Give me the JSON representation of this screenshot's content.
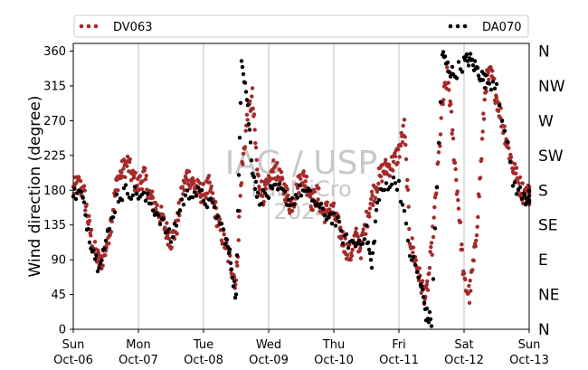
{
  "chart_data": {
    "type": "scatter",
    "ylabel": "Wind direction (degree)",
    "ylim": [
      0,
      370
    ],
    "yticks": [
      0,
      45,
      90,
      135,
      180,
      225,
      270,
      315,
      360
    ],
    "xlim": [
      "2024-10-06 00:00",
      "2024-10-13 00:00"
    ],
    "xticks": [
      {
        "value": "2024-10-06",
        "day": "Sun",
        "date": "Oct-06"
      },
      {
        "value": "2024-10-07",
        "day": "Mon",
        "date": "Oct-07"
      },
      {
        "value": "2024-10-08",
        "day": "Tue",
        "date": "Oct-08"
      },
      {
        "value": "2024-10-09",
        "day": "Wed",
        "date": "Oct-09"
      },
      {
        "value": "2024-10-10",
        "day": "Thu",
        "date": "Oct-10"
      },
      {
        "value": "2024-10-11",
        "day": "Fri",
        "date": "Oct-11"
      },
      {
        "value": "2024-10-12",
        "day": "Sat",
        "date": "Oct-12"
      },
      {
        "value": "2024-10-13",
        "day": "Sun",
        "date": "Oct-13"
      }
    ],
    "secondary_y_labels": [
      {
        "value": 0,
        "label": "N"
      },
      {
        "value": 45,
        "label": "NE"
      },
      {
        "value": 90,
        "label": "E"
      },
      {
        "value": 135,
        "label": "SE"
      },
      {
        "value": 180,
        "label": "S"
      },
      {
        "value": 225,
        "label": "SW"
      },
      {
        "value": 270,
        "label": "W"
      },
      {
        "value": 315,
        "label": "NW"
      },
      {
        "value": 360,
        "label": "N"
      }
    ],
    "grid": "vertical lines at day ticks",
    "legend_placement": "top, above plot",
    "watermark": [
      "IAG / USP",
      "LabMiCro",
      "2024"
    ],
    "series": [
      {
        "name": "DV063",
        "color": "#a52a2a",
        "points": [
          [
            "2024-10-06 00:00",
            180
          ],
          [
            "2024-10-06 02:00",
            188
          ],
          [
            "2024-10-06 04:00",
            175
          ],
          [
            "2024-10-06 06:00",
            130
          ],
          [
            "2024-10-06 08:00",
            100
          ],
          [
            "2024-10-06 10:00",
            85
          ],
          [
            "2024-10-06 12:00",
            105
          ],
          [
            "2024-10-06 14:00",
            140
          ],
          [
            "2024-10-06 16:00",
            190
          ],
          [
            "2024-10-06 18:00",
            205
          ],
          [
            "2024-10-06 20:00",
            215
          ],
          [
            "2024-10-06 22:00",
            195
          ],
          [
            "2024-10-07 00:00",
            185
          ],
          [
            "2024-10-07 02:00",
            200
          ],
          [
            "2024-10-07 04:00",
            175
          ],
          [
            "2024-10-07 06:00",
            160
          ],
          [
            "2024-10-07 08:00",
            150
          ],
          [
            "2024-10-07 10:00",
            130
          ],
          [
            "2024-10-07 12:00",
            115
          ],
          [
            "2024-10-07 14:00",
            130
          ],
          [
            "2024-10-07 16:00",
            175
          ],
          [
            "2024-10-07 18:00",
            200
          ],
          [
            "2024-10-07 20:00",
            190
          ],
          [
            "2024-10-07 22:00",
            180
          ],
          [
            "2024-10-08 00:00",
            175
          ],
          [
            "2024-10-08 02:00",
            185
          ],
          [
            "2024-10-08 04:00",
            160
          ],
          [
            "2024-10-08 06:00",
            130
          ],
          [
            "2024-10-08 08:00",
            110
          ],
          [
            "2024-10-08 10:00",
            85
          ],
          [
            "2024-10-08 12:00",
            60
          ],
          [
            "2024-10-08 14:00",
            200
          ],
          [
            "2024-10-08 16:00",
            270
          ],
          [
            "2024-10-08 18:00",
            300
          ],
          [
            "2024-10-08 20:00",
            195
          ],
          [
            "2024-10-08 22:00",
            175
          ],
          [
            "2024-10-09 00:00",
            185
          ],
          [
            "2024-10-09 02:00",
            210
          ],
          [
            "2024-10-09 04:00",
            195
          ],
          [
            "2024-10-09 06:00",
            180
          ],
          [
            "2024-10-09 08:00",
            160
          ],
          [
            "2024-10-09 10:00",
            175
          ],
          [
            "2024-10-09 12:00",
            200
          ],
          [
            "2024-10-09 14:00",
            190
          ],
          [
            "2024-10-09 16:00",
            165
          ],
          [
            "2024-10-09 18:00",
            175
          ],
          [
            "2024-10-09 20:00",
            150
          ],
          [
            "2024-10-09 22:00",
            155
          ],
          [
            "2024-10-10 00:00",
            150
          ],
          [
            "2024-10-10 02:00",
            130
          ],
          [
            "2024-10-10 04:00",
            110
          ],
          [
            "2024-10-10 06:00",
            95
          ],
          [
            "2024-10-10 08:00",
            120
          ],
          [
            "2024-10-10 10:00",
            105
          ],
          [
            "2024-10-10 12:00",
            140
          ],
          [
            "2024-10-10 14:00",
            170
          ],
          [
            "2024-10-10 16:00",
            190
          ],
          [
            "2024-10-10 18:00",
            205
          ],
          [
            "2024-10-10 20:00",
            210
          ],
          [
            "2024-10-10 22:00",
            215
          ],
          [
            "2024-10-11 00:00",
            230
          ],
          [
            "2024-10-11 02:00",
            260
          ],
          [
            "2024-10-11 04:00",
            120
          ],
          [
            "2024-10-11 06:00",
            90
          ],
          [
            "2024-10-11 08:00",
            60
          ],
          [
            "2024-10-11 10:00",
            40
          ],
          [
            "2024-10-11 12:00",
            100
          ],
          [
            "2024-10-11 14:00",
            190
          ],
          [
            "2024-10-11 16:00",
            290
          ],
          [
            "2024-10-11 18:00",
            330
          ],
          [
            "2024-10-11 20:00",
            240
          ],
          [
            "2024-10-11 22:00",
            160
          ],
          [
            "2024-10-12 00:00",
            60
          ],
          [
            "2024-10-12 02:00",
            45
          ],
          [
            "2024-10-12 04:00",
            100
          ],
          [
            "2024-10-12 06:00",
            200
          ],
          [
            "2024-10-12 08:00",
            320
          ],
          [
            "2024-10-12 10:00",
            330
          ],
          [
            "2024-10-12 12:00",
            300
          ],
          [
            "2024-10-12 14:00",
            270
          ],
          [
            "2024-10-12 16:00",
            240
          ],
          [
            "2024-10-12 18:00",
            210
          ],
          [
            "2024-10-12 20:00",
            190
          ],
          [
            "2024-10-12 22:00",
            175
          ],
          [
            "2024-10-13 00:00",
            175
          ]
        ]
      },
      {
        "name": "DA070",
        "color": "#000000",
        "points": [
          [
            "2024-10-06 00:00",
            175
          ],
          [
            "2024-10-06 03:00",
            175
          ],
          [
            "2024-10-06 06:00",
            120
          ],
          [
            "2024-10-06 09:00",
            85
          ],
          [
            "2024-10-06 12:00",
            110
          ],
          [
            "2024-10-06 16:00",
            170
          ],
          [
            "2024-10-06 20:00",
            180
          ],
          [
            "2024-10-07 00:00",
            175
          ],
          [
            "2024-10-07 04:00",
            165
          ],
          [
            "2024-10-07 08:00",
            145
          ],
          [
            "2024-10-07 12:00",
            115
          ],
          [
            "2024-10-07 16:00",
            165
          ],
          [
            "2024-10-07 20:00",
            180
          ],
          [
            "2024-10-08 00:00",
            170
          ],
          [
            "2024-10-08 04:00",
            155
          ],
          [
            "2024-10-08 08:00",
            120
          ],
          [
            "2024-10-08 10:00",
            90
          ],
          [
            "2024-10-08 12:00",
            40
          ],
          [
            "2024-10-08 14:00",
            355
          ],
          [
            "2024-10-08 16:00",
            300
          ],
          [
            "2024-10-08 18:00",
            210
          ],
          [
            "2024-10-08 20:00",
            170
          ],
          [
            "2024-10-09 00:00",
            175
          ],
          [
            "2024-10-09 04:00",
            180
          ],
          [
            "2024-10-09 08:00",
            165
          ],
          [
            "2024-10-09 12:00",
            180
          ],
          [
            "2024-10-09 16:00",
            170
          ],
          [
            "2024-10-09 20:00",
            150
          ],
          [
            "2024-10-10 00:00",
            145
          ],
          [
            "2024-10-10 04:00",
            115
          ],
          [
            "2024-10-10 08:00",
            110
          ],
          [
            "2024-10-10 12:00",
            125
          ],
          [
            "2024-10-10 14:00",
            80
          ],
          [
            "2024-10-10 16:00",
            165
          ],
          [
            "2024-10-10 20:00",
            190
          ],
          [
            "2024-10-11 00:00",
            190
          ],
          [
            "2024-10-11 04:00",
            100
          ],
          [
            "2024-10-11 08:00",
            60
          ],
          [
            "2024-10-11 10:00",
            20
          ],
          [
            "2024-10-11 12:00",
            10
          ],
          [
            "2024-10-11 16:00",
            355
          ],
          [
            "2024-10-11 18:00",
            340
          ],
          [
            "2024-10-11 20:00",
            330
          ],
          [
            "2024-10-12 00:00",
            345
          ],
          [
            "2024-10-12 02:00",
            350
          ],
          [
            "2024-10-12 04:00",
            340
          ],
          [
            "2024-10-12 06:00",
            330
          ],
          [
            "2024-10-12 08:00",
            320
          ],
          [
            "2024-10-12 12:00",
            320
          ],
          [
            "2024-10-12 18:00",
            190
          ],
          [
            "2024-10-12 22:00",
            170
          ],
          [
            "2024-10-13 00:00",
            170
          ]
        ]
      }
    ]
  }
}
